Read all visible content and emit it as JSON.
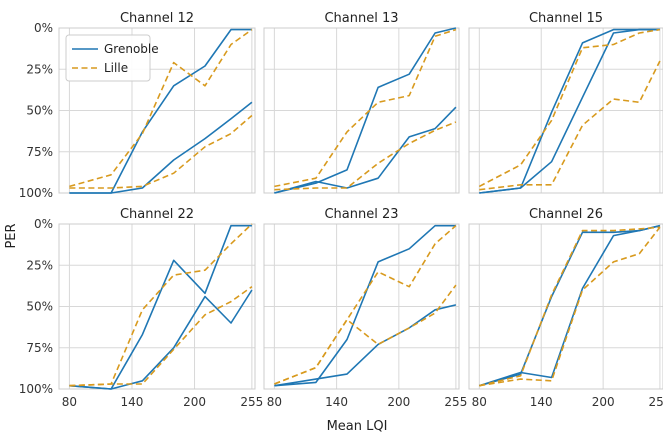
{
  "chart_data": {
    "type": "line",
    "xlabel": "Mean LQI",
    "ylabel": "PER",
    "xlim": [
      70,
      258
    ],
    "ylim": [
      0,
      100
    ],
    "y_inverted": true,
    "x_ticks": [
      80,
      140,
      200,
      255
    ],
    "y_ticks": [
      0,
      25,
      50,
      75,
      100
    ],
    "y_tick_labels": [
      "0%",
      "25%",
      "50%",
      "75%",
      "100%"
    ],
    "grid": true,
    "legend": {
      "placement": "top-left",
      "panel": 0,
      "entries": [
        "Grenoble",
        "Lille"
      ]
    },
    "colors": {
      "Grenoble": "#1f77b4",
      "Lille": "#d89a1e"
    },
    "panels": [
      {
        "title": "Channel 12",
        "series": [
          {
            "name": "Grenoble",
            "segments": [
              [
                [
                  80,
                  100
                ],
                [
                  120,
                  100
                ],
                [
                  150,
                  97
                ],
                [
                  180,
                  80
                ],
                [
                  210,
                  67
                ],
                [
                  235,
                  55
                ],
                [
                  255,
                  45
                ]
              ],
              [
                [
                  80,
                  100
                ],
                [
                  120,
                  100
                ],
                [
                  150,
                  63
                ],
                [
                  180,
                  35
                ],
                [
                  210,
                  23
                ],
                [
                  235,
                  1
                ],
                [
                  255,
                  1
                ]
              ]
            ]
          },
          {
            "name": "Lille",
            "segments": [
              [
                [
                  80,
                  97
                ],
                [
                  120,
                  97
                ],
                [
                  150,
                  96
                ],
                [
                  180,
                  88
                ],
                [
                  210,
                  72
                ],
                [
                  235,
                  64
                ],
                [
                  255,
                  53
                ]
              ],
              [
                [
                  80,
                  96
                ],
                [
                  120,
                  89
                ],
                [
                  150,
                  64
                ],
                [
                  180,
                  21
                ],
                [
                  210,
                  35
                ],
                [
                  235,
                  10
                ],
                [
                  255,
                  1
                ]
              ]
            ]
          }
        ]
      },
      {
        "title": "Channel 13",
        "series": [
          {
            "name": "Grenoble",
            "segments": [
              [
                [
                  80,
                  100
                ],
                [
                  120,
                  93
                ],
                [
                  150,
                  97
                ],
                [
                  180,
                  91
                ],
                [
                  210,
                  66
                ],
                [
                  235,
                  61
                ],
                [
                  255,
                  48
                ]
              ],
              [
                [
                  80,
                  100
                ],
                [
                  120,
                  94
                ],
                [
                  150,
                  86
                ],
                [
                  180,
                  36
                ],
                [
                  210,
                  28
                ],
                [
                  235,
                  3
                ],
                [
                  255,
                  0
                ]
              ]
            ]
          },
          {
            "name": "Lille",
            "segments": [
              [
                [
                  80,
                  98
                ],
                [
                  120,
                  97
                ],
                [
                  150,
                  97
                ],
                [
                  180,
                  82
                ],
                [
                  210,
                  70
                ],
                [
                  235,
                  62
                ],
                [
                  255,
                  57
                ]
              ],
              [
                [
                  80,
                  96
                ],
                [
                  120,
                  91
                ],
                [
                  150,
                  63
                ],
                [
                  180,
                  45
                ],
                [
                  210,
                  41
                ],
                [
                  235,
                  5
                ],
                [
                  255,
                  1
                ]
              ]
            ]
          }
        ]
      },
      {
        "title": "Channel 15",
        "series": [
          {
            "name": "Grenoble",
            "segments": [
              [
                [
                  80,
                  100
                ],
                [
                  120,
                  97
                ],
                [
                  150,
                  81
                ],
                [
                  180,
                  42
                ],
                [
                  210,
                  3
                ],
                [
                  235,
                  1
                ],
                [
                  255,
                  1
                ]
              ],
              [
                [
                  80,
                  100
                ],
                [
                  120,
                  97
                ],
                [
                  150,
                  51
                ],
                [
                  180,
                  9
                ],
                [
                  210,
                  1
                ],
                [
                  235,
                  1
                ],
                [
                  255,
                  1
                ]
              ]
            ]
          },
          {
            "name": "Lille",
            "segments": [
              [
                [
                  80,
                  98
                ],
                [
                  120,
                  95
                ],
                [
                  150,
                  95
                ],
                [
                  180,
                  59
                ],
                [
                  210,
                  43
                ],
                [
                  235,
                  45
                ],
                [
                  255,
                  20
                ]
              ],
              [
                [
                  80,
                  96
                ],
                [
                  120,
                  83
                ],
                [
                  150,
                  56
                ],
                [
                  180,
                  12
                ],
                [
                  210,
                  10
                ],
                [
                  235,
                  3
                ],
                [
                  255,
                  1
                ]
              ]
            ]
          }
        ]
      },
      {
        "title": "Channel 22",
        "series": [
          {
            "name": "Grenoble",
            "segments": [
              [
                [
                  80,
                  98
                ],
                [
                  120,
                  100
                ],
                [
                  150,
                  95
                ],
                [
                  180,
                  75
                ],
                [
                  210,
                  44
                ],
                [
                  235,
                  60
                ],
                [
                  255,
                  40
                ]
              ],
              [
                [
                  80,
                  98
                ],
                [
                  120,
                  100
                ],
                [
                  150,
                  67
                ],
                [
                  180,
                  22
                ],
                [
                  210,
                  42
                ],
                [
                  235,
                  1
                ],
                [
                  255,
                  1
                ]
              ]
            ]
          },
          {
            "name": "Lille",
            "segments": [
              [
                [
                  80,
                  98
                ],
                [
                  120,
                  97
                ],
                [
                  150,
                  97
                ],
                [
                  180,
                  76
                ],
                [
                  210,
                  55
                ],
                [
                  235,
                  47
                ],
                [
                  255,
                  38
                ]
              ],
              [
                [
                  80,
                  98
                ],
                [
                  120,
                  97
                ],
                [
                  150,
                  52
                ],
                [
                  180,
                  31
                ],
                [
                  210,
                  28
                ],
                [
                  235,
                  12
                ],
                [
                  255,
                  0
                ]
              ]
            ]
          }
        ]
      },
      {
        "title": "Channel 23",
        "series": [
          {
            "name": "Grenoble",
            "segments": [
              [
                [
                  80,
                  98
                ],
                [
                  120,
                  94
                ],
                [
                  150,
                  91
                ],
                [
                  180,
                  73
                ],
                [
                  210,
                  63
                ],
                [
                  235,
                  52
                ],
                [
                  255,
                  49
                ]
              ],
              [
                [
                  80,
                  98
                ],
                [
                  120,
                  96
                ],
                [
                  150,
                  70
                ],
                [
                  180,
                  23
                ],
                [
                  210,
                  15
                ],
                [
                  235,
                  1
                ],
                [
                  255,
                  1
                ]
              ]
            ]
          },
          {
            "name": "Lille",
            "segments": [
              [
                [
                  80,
                  97
                ],
                [
                  120,
                  87
                ],
                [
                  150,
                  58
                ],
                [
                  180,
                  73
                ],
                [
                  210,
                  63
                ],
                [
                  235,
                  54
                ],
                [
                  255,
                  37
                ]
              ],
              [
                [
                  80,
                  97
                ],
                [
                  120,
                  87
                ],
                [
                  150,
                  58
                ],
                [
                  180,
                  29
                ],
                [
                  210,
                  38
                ],
                [
                  235,
                  12
                ],
                [
                  255,
                  1
                ]
              ]
            ]
          }
        ]
      },
      {
        "title": "Channel 26",
        "series": [
          {
            "name": "Grenoble",
            "segments": [
              [
                [
                  80,
                  98
                ],
                [
                  120,
                  90
                ],
                [
                  150,
                  93
                ],
                [
                  180,
                  39
                ],
                [
                  210,
                  7
                ],
                [
                  235,
                  4
                ],
                [
                  255,
                  1
                ]
              ],
              [
                [
                  80,
                  98
                ],
                [
                  120,
                  91
                ],
                [
                  150,
                  44
                ],
                [
                  180,
                  5
                ],
                [
                  210,
                  5
                ],
                [
                  235,
                  4
                ],
                [
                  255,
                  1
                ]
              ]
            ]
          },
          {
            "name": "Lille",
            "segments": [
              [
                [
                  80,
                  98
                ],
                [
                  120,
                  94
                ],
                [
                  150,
                  95
                ],
                [
                  180,
                  40
                ],
                [
                  210,
                  23
                ],
                [
                  235,
                  18
                ],
                [
                  255,
                  2
                ]
              ],
              [
                [
                  80,
                  98
                ],
                [
                  120,
                  92
                ],
                [
                  150,
                  43
                ],
                [
                  180,
                  4
                ],
                [
                  210,
                  4
                ],
                [
                  235,
                  3
                ],
                [
                  255,
                  2
                ]
              ]
            ]
          }
        ]
      }
    ]
  }
}
